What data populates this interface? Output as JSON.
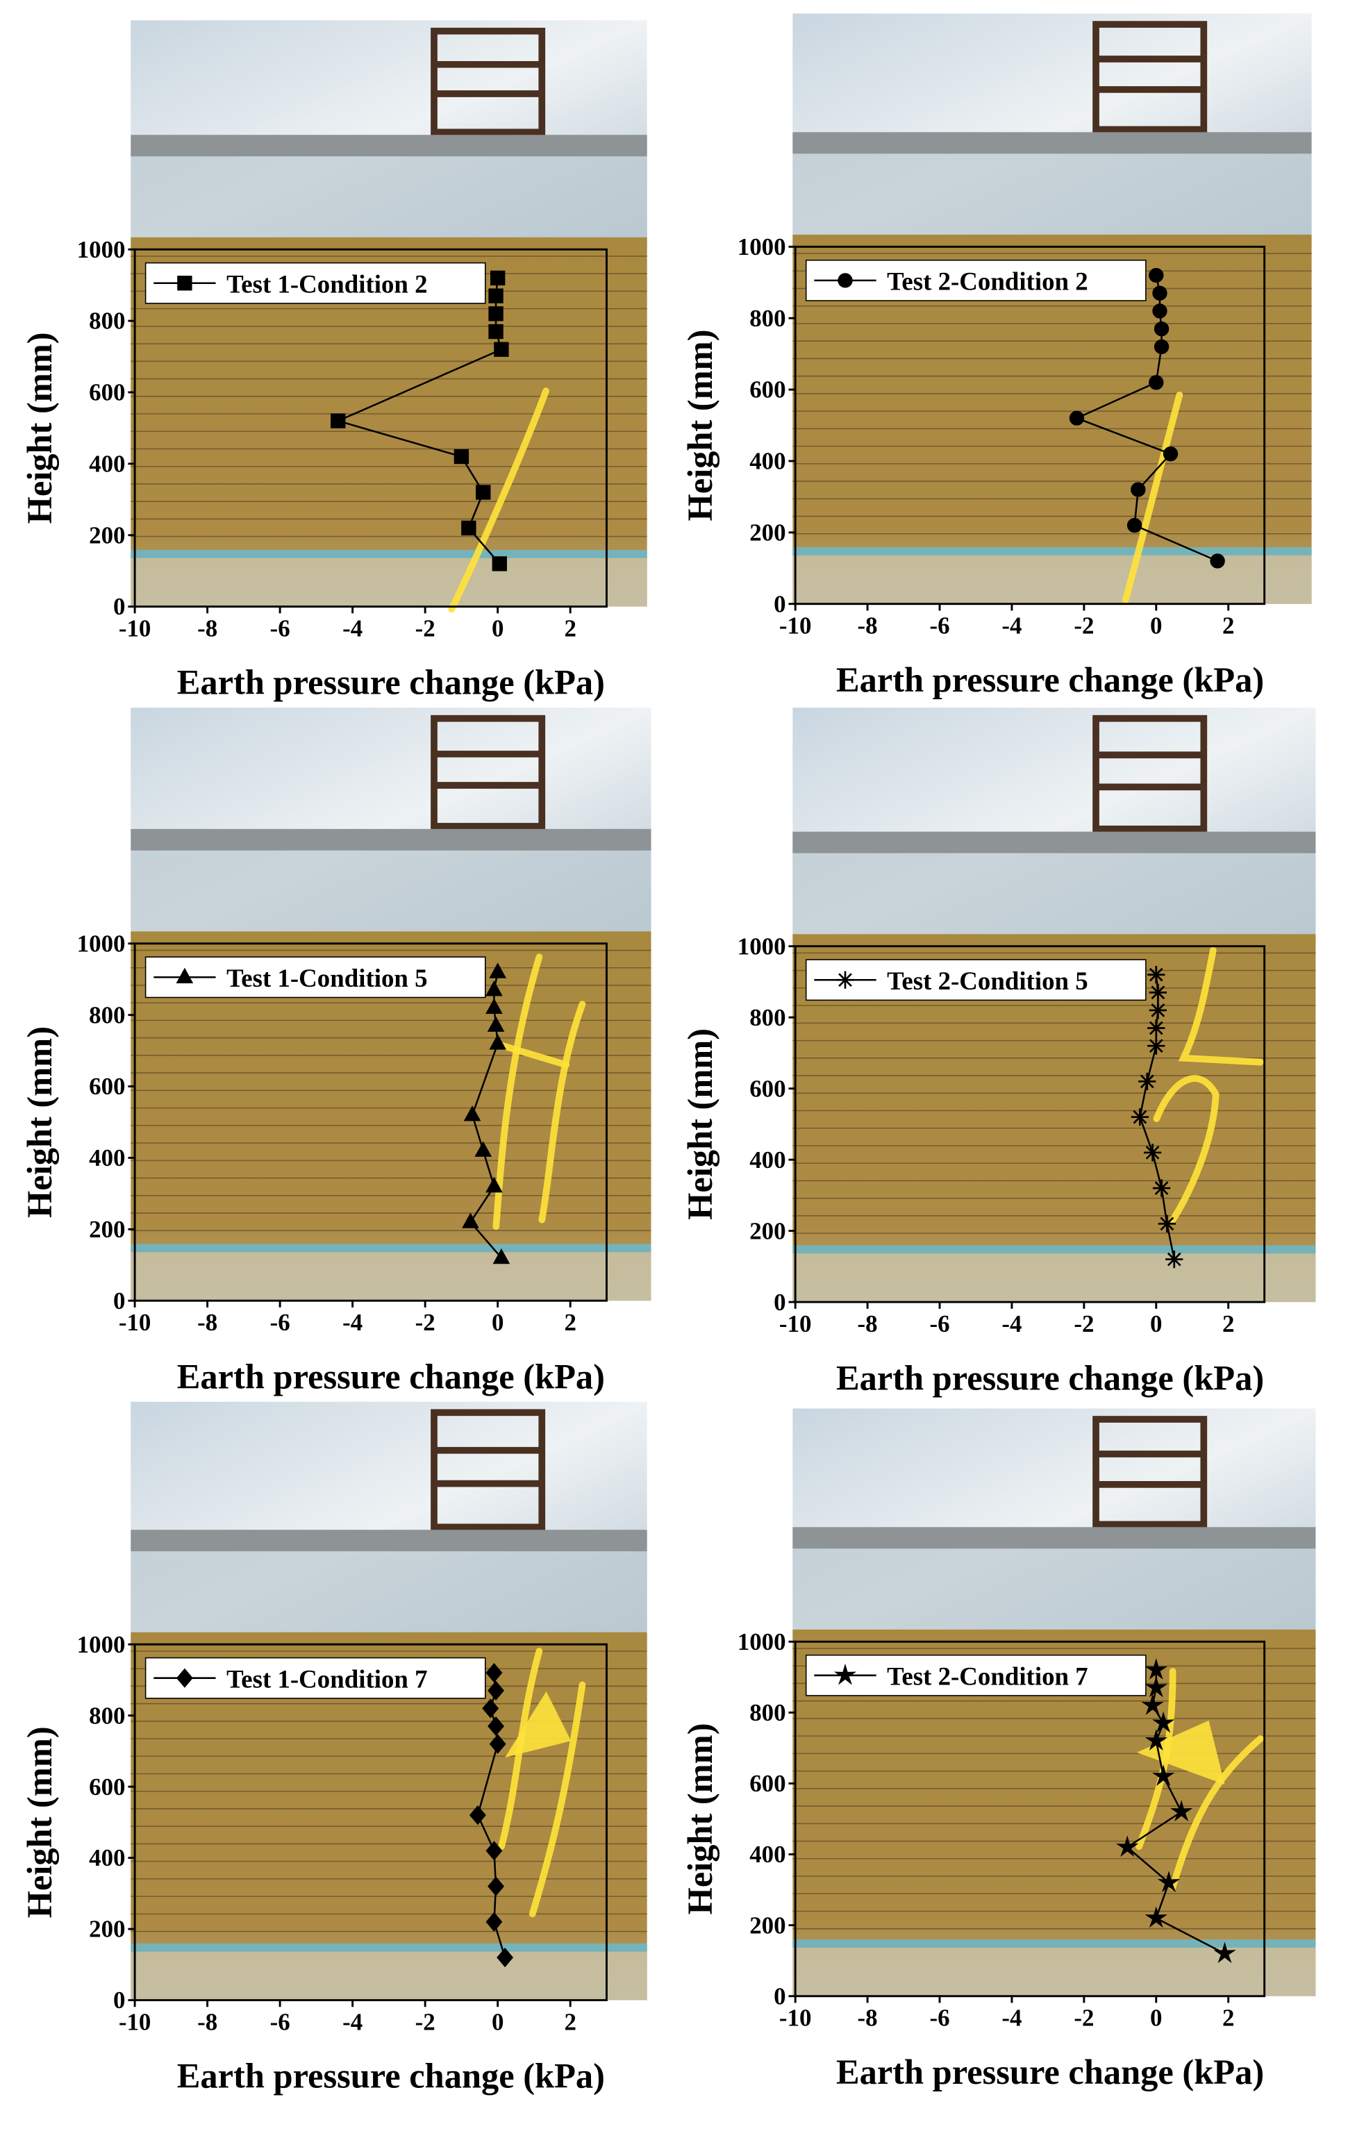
{
  "chart_data": [
    {
      "type": "line",
      "xlabel": "Earth pressure change (kPa)",
      "ylabel": "Height (mm)",
      "xlim": [
        -10,
        3
      ],
      "xticks": [
        -10,
        -8,
        -6,
        -4,
        -2,
        0,
        2
      ],
      "ylim": [
        0,
        1000
      ],
      "yticks": [
        0,
        200,
        400,
        600,
        800,
        1000
      ],
      "legend": "upper-left",
      "series": [
        {
          "name": "Test 1-Condition 2",
          "color": "#000000",
          "marker": "square",
          "x": [
            0,
            -0.05,
            -0.05,
            -0.05,
            0.1,
            -4.4,
            -1.0,
            -0.4,
            -0.8,
            0.05
          ],
          "values": [
            920,
            870,
            820,
            770,
            720,
            520,
            420,
            320,
            220,
            120
          ]
        }
      ]
    },
    {
      "type": "line",
      "xlabel": "Earth pressure change (kPa)",
      "ylabel": "Height (mm)",
      "xlim": [
        -10,
        3
      ],
      "xticks": [
        -10,
        -8,
        -6,
        -4,
        -2,
        0,
        2
      ],
      "ylim": [
        0,
        1000
      ],
      "yticks": [
        0,
        200,
        400,
        600,
        800,
        1000
      ],
      "legend": "upper-left",
      "series": [
        {
          "name": "Test 2-Condition 2",
          "color": "#000000",
          "marker": "circle",
          "x": [
            0,
            0.1,
            0.1,
            0.15,
            0.15,
            0,
            -2.2,
            0.4,
            -0.5,
            -0.6,
            1.7
          ],
          "values": [
            920,
            870,
            820,
            770,
            720,
            620,
            520,
            420,
            320,
            220,
            120
          ]
        }
      ]
    },
    {
      "type": "line",
      "xlabel": "Earth pressure change (kPa)",
      "ylabel": "Height (mm)",
      "xlim": [
        -10,
        3
      ],
      "xticks": [
        -10,
        -8,
        -6,
        -4,
        -2,
        0,
        2
      ],
      "ylim": [
        0,
        1000
      ],
      "yticks": [
        0,
        200,
        400,
        600,
        800,
        1000
      ],
      "legend": "upper-left",
      "series": [
        {
          "name": "Test 1-Condition 5",
          "color": "#000000",
          "marker": "triangle",
          "x": [
            0,
            -0.1,
            -0.1,
            -0.05,
            0,
            -0.7,
            -0.4,
            -0.1,
            -0.75,
            0.1
          ],
          "values": [
            920,
            870,
            820,
            770,
            720,
            520,
            420,
            320,
            220,
            120
          ]
        }
      ]
    },
    {
      "type": "line",
      "xlabel": "Earth pressure change (kPa)",
      "ylabel": "Height (mm)",
      "xlim": [
        -10,
        3
      ],
      "xticks": [
        -10,
        -8,
        -6,
        -4,
        -2,
        0,
        2
      ],
      "ylim": [
        0,
        1000
      ],
      "yticks": [
        0,
        200,
        400,
        600,
        800,
        1000
      ],
      "legend": "upper-left",
      "series": [
        {
          "name": "Test 2-Condition 5",
          "color": "#000000",
          "marker": "asterisk",
          "x": [
            0,
            0.05,
            0.05,
            0,
            0,
            -0.25,
            -0.45,
            -0.1,
            0.15,
            0.3,
            0.5
          ],
          "values": [
            920,
            870,
            820,
            770,
            720,
            620,
            520,
            420,
            320,
            220,
            120
          ]
        }
      ]
    },
    {
      "type": "line",
      "xlabel": "Earth pressure change (kPa)",
      "ylabel": "Height (mm)",
      "xlim": [
        -10,
        3
      ],
      "xticks": [
        -10,
        -8,
        -6,
        -4,
        -2,
        0,
        2
      ],
      "ylim": [
        0,
        1000
      ],
      "yticks": [
        0,
        200,
        400,
        600,
        800,
        1000
      ],
      "legend": "upper-left",
      "series": [
        {
          "name": "Test 1-Condition 7",
          "color": "#000000",
          "marker": "diamond",
          "x": [
            -0.1,
            -0.05,
            -0.2,
            -0.05,
            0,
            -0.55,
            -0.1,
            -0.05,
            -0.1,
            0.2
          ],
          "values": [
            920,
            870,
            820,
            770,
            720,
            520,
            420,
            320,
            220,
            120
          ]
        }
      ]
    },
    {
      "type": "line",
      "xlabel": "Earth pressure change (kPa)",
      "ylabel": "Height (mm)",
      "xlim": [
        -10,
        3
      ],
      "xticks": [
        -10,
        -8,
        -6,
        -4,
        -2,
        0,
        2
      ],
      "ylim": [
        0,
        1000
      ],
      "yticks": [
        0,
        200,
        400,
        600,
        800,
        1000
      ],
      "legend": "upper-left",
      "series": [
        {
          "name": "Test 2-Condition 7",
          "color": "#000000",
          "marker": "star",
          "x": [
            0,
            0,
            -0.1,
            0.2,
            0,
            0.2,
            0.7,
            -0.8,
            0.35,
            0,
            1.9
          ],
          "values": [
            920,
            870,
            820,
            770,
            720,
            620,
            520,
            420,
            320,
            220,
            120
          ]
        }
      ]
    }
  ]
}
